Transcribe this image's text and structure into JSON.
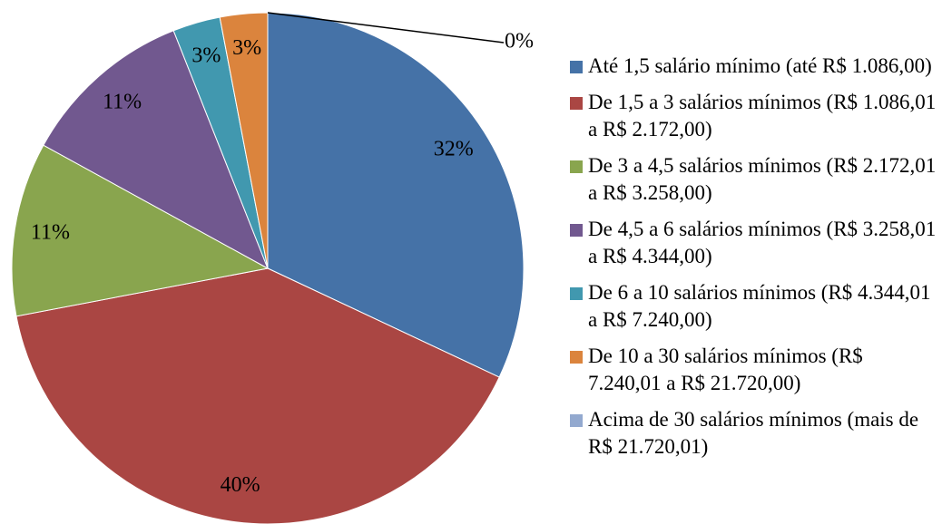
{
  "chart_data": {
    "type": "pie",
    "categories": [
      "Até 1,5 salário mínimo (até R$ 1.086,00)",
      "De 1,5 a 3 salários mínimos (R$ 1.086,01 a R$ 2.172,00)",
      "De 3 a 4,5 salários mínimos (R$ 2.172,01 a R$ 3.258,00)",
      "De 4,5 a 6 salários mínimos (R$ 3.258,01 a R$ 4.344,00)",
      "De 6 a 10 salários mínimos (R$ 4.344,01 a R$ 7.240,00)",
      "De 10 a 30 salários mínimos (R$ 7.240,01 a R$ 21.720,00)",
      "Acima de 30 salários mínimos (mais de R$ 21.720,01)"
    ],
    "values": [
      32,
      40,
      11,
      11,
      3,
      3,
      0
    ],
    "value_labels": [
      "32%",
      "40%",
      "11%",
      "11%",
      "3%",
      "3%",
      "0%"
    ],
    "colors": [
      "#4572a7",
      "#aa4643",
      "#89a54e",
      "#71588f",
      "#4198af",
      "#db843d",
      "#93a9cf"
    ],
    "legend": "right"
  }
}
